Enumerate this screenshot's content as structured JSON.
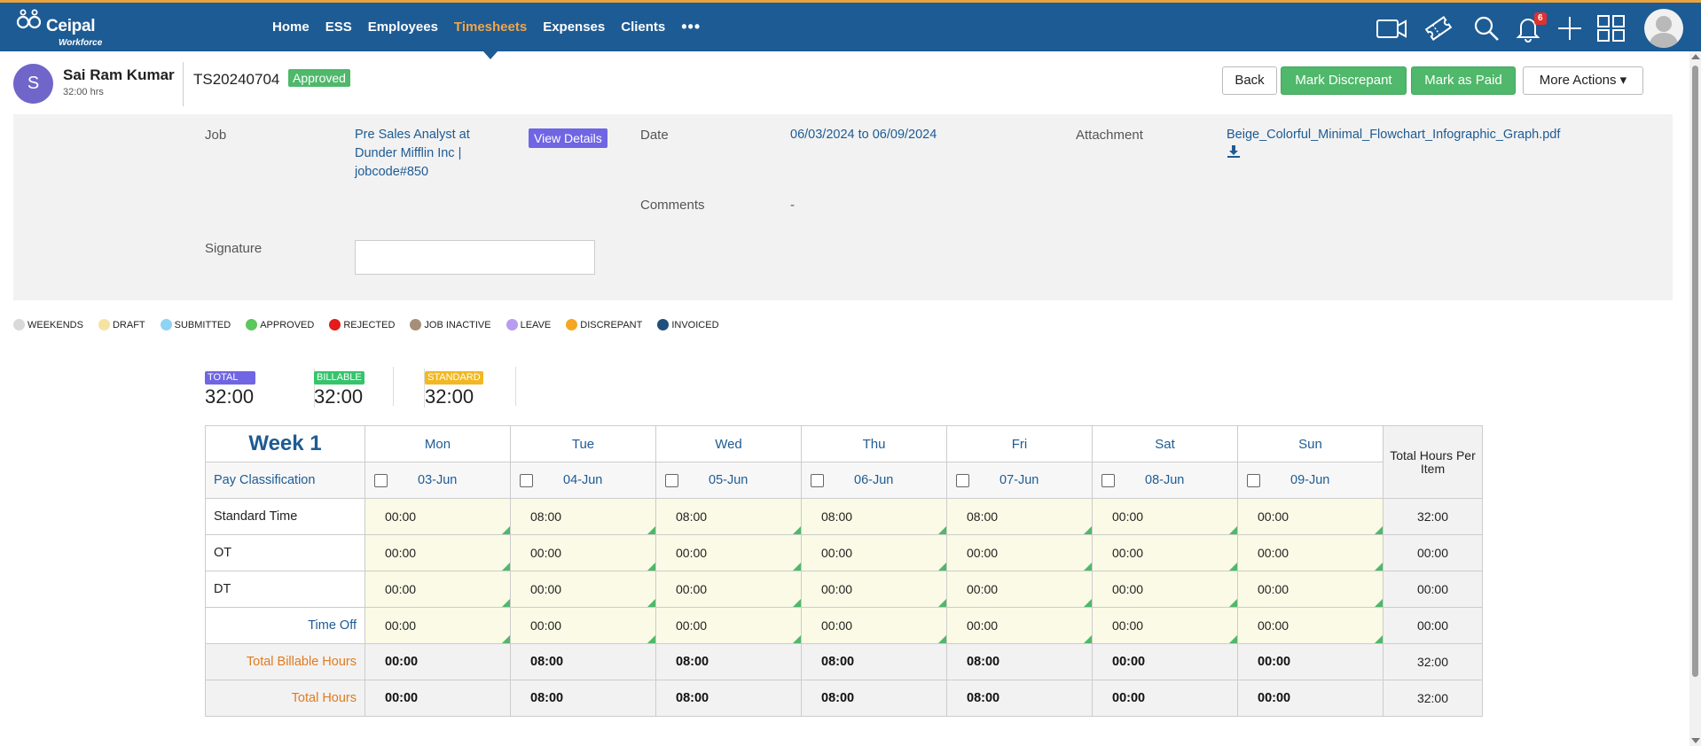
{
  "brand": {
    "name": "Ceipal",
    "sub": "Workforce"
  },
  "nav": [
    {
      "label": "Home",
      "active": false
    },
    {
      "label": "ESS",
      "active": false
    },
    {
      "label": "Employees",
      "active": false
    },
    {
      "label": "Timesheets",
      "active": true
    },
    {
      "label": "Expenses",
      "active": false
    },
    {
      "label": "Clients",
      "active": false
    }
  ],
  "nav_more": "•••",
  "tools": {
    "notifications_count": "6"
  },
  "user": {
    "initial": "S",
    "name": "Sai Ram Kumar",
    "hours": "32:00 hrs"
  },
  "timesheet": {
    "id": "TS20240704",
    "status": "Approved"
  },
  "actions": {
    "back": "Back",
    "mark_discrepant": "Mark Discrepant",
    "mark_paid": "Mark as Paid",
    "more_actions": "More Actions ▾"
  },
  "details": {
    "job_label": "Job",
    "job_value": "Pre Sales Analyst at Dunder Mifflin Inc | jobcode#850",
    "view_details": "View Details",
    "date_label": "Date",
    "date_value": "06/03/2024 to 06/09/2024",
    "attachment_label": "Attachment",
    "attachment_value": "Beige_Colorful_Minimal_Flowchart_Infographic_Graph.pdf",
    "comments_label": "Comments",
    "comments_value": "-",
    "signature_label": "Signature"
  },
  "legend": [
    {
      "label": "WEEKENDS",
      "color": "#d9d9d9"
    },
    {
      "label": "DRAFT",
      "color": "#f6e3a1"
    },
    {
      "label": "SUBMITTED",
      "color": "#8fd3f5"
    },
    {
      "label": "APPROVED",
      "color": "#5cc75c"
    },
    {
      "label": "REJECTED",
      "color": "#e31b1b"
    },
    {
      "label": "JOB INACTIVE",
      "color": "#a58f7a"
    },
    {
      "label": "LEAVE",
      "color": "#b79cf0"
    },
    {
      "label": "DISCREPANT",
      "color": "#f5a623"
    },
    {
      "label": "INVOICED",
      "color": "#1f4f7a"
    }
  ],
  "totals": [
    {
      "tag": "TOTAL",
      "value": "32:00",
      "color": "#7065e3"
    },
    {
      "tag": "BILLABLE",
      "value": "32:00",
      "color": "#35c46b"
    },
    {
      "tag": "STANDARD",
      "value": "32:00",
      "color": "#f2b822"
    }
  ],
  "grid": {
    "week_label": "Week 1",
    "pay_classification": "Pay Classification",
    "total_header": "Total Hours Per Item",
    "days": [
      {
        "name": "Mon",
        "date": "03-Jun"
      },
      {
        "name": "Tue",
        "date": "04-Jun"
      },
      {
        "name": "Wed",
        "date": "05-Jun"
      },
      {
        "name": "Thu",
        "date": "06-Jun"
      },
      {
        "name": "Fri",
        "date": "07-Jun"
      },
      {
        "name": "Sat",
        "date": "08-Jun"
      },
      {
        "name": "Sun",
        "date": "09-Jun"
      }
    ],
    "rows": [
      {
        "label": "Standard Time",
        "values": [
          "00:00",
          "08:00",
          "08:00",
          "08:00",
          "08:00",
          "00:00",
          "00:00"
        ],
        "total": "32:00"
      },
      {
        "label": "OT",
        "values": [
          "00:00",
          "00:00",
          "00:00",
          "00:00",
          "00:00",
          "00:00",
          "00:00"
        ],
        "total": "00:00"
      },
      {
        "label": "DT",
        "values": [
          "00:00",
          "00:00",
          "00:00",
          "00:00",
          "00:00",
          "00:00",
          "00:00"
        ],
        "total": "00:00"
      },
      {
        "label": "Time Off",
        "values": [
          "00:00",
          "00:00",
          "00:00",
          "00:00",
          "00:00",
          "00:00",
          "00:00"
        ],
        "total": "00:00"
      }
    ],
    "summary": [
      {
        "label": "Total Billable Hours",
        "values": [
          "00:00",
          "08:00",
          "08:00",
          "08:00",
          "08:00",
          "00:00",
          "00:00"
        ],
        "total": "32:00"
      },
      {
        "label": "Total Hours",
        "values": [
          "00:00",
          "08:00",
          "08:00",
          "08:00",
          "08:00",
          "00:00",
          "00:00"
        ],
        "total": "32:00"
      }
    ]
  }
}
